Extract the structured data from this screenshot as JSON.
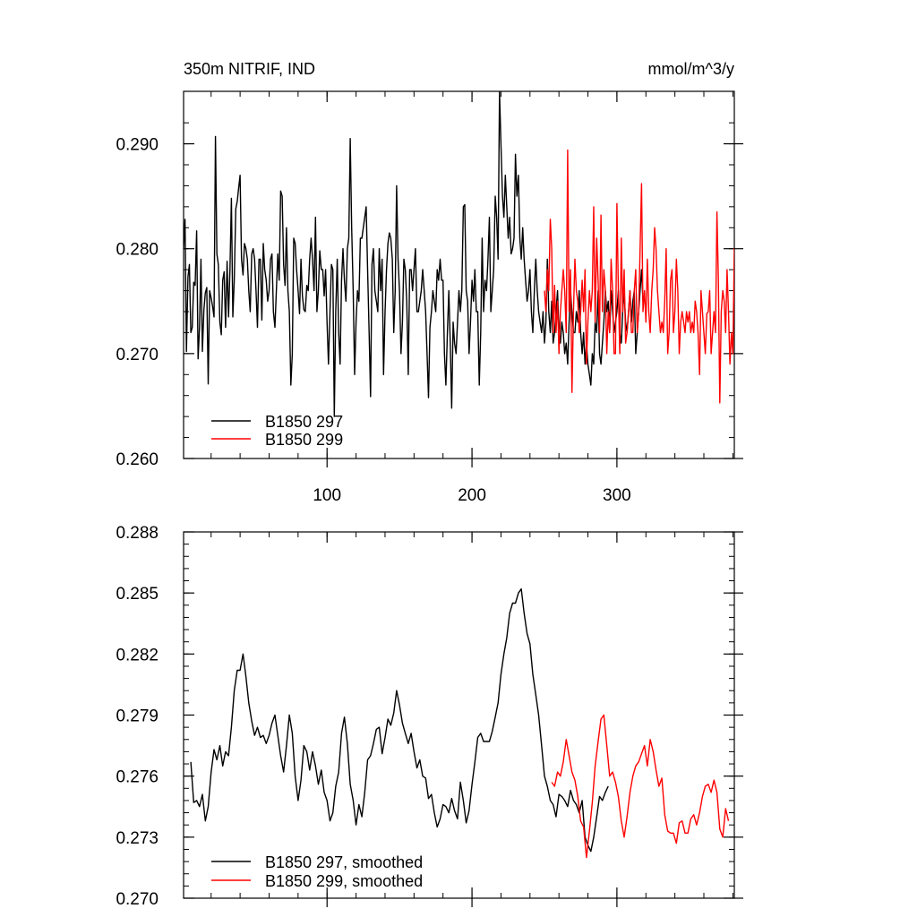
{
  "colors": {
    "black_series": "#000000",
    "red_series": "#ff0000",
    "axes": "#000000"
  },
  "chart_data": [
    {
      "type": "line",
      "title_left": "350m NITRIF, IND",
      "title_right": "mmol/m^3/y",
      "xlim": [
        1,
        381
      ],
      "ylim": [
        0.26,
        0.295
      ],
      "x_major_ticks": [
        100,
        200,
        300
      ],
      "x_tick_labels": [
        "100",
        "200",
        "300"
      ],
      "x_minor_step": 20,
      "y_major_ticks": [
        0.26,
        0.27,
        0.28,
        0.29
      ],
      "y_tick_labels": [
        "0.260",
        "0.270",
        "0.280",
        "0.290"
      ],
      "y_minor_step": 0.002,
      "legend_position": "bottom-left",
      "series": [
        {
          "name": "B1850 297",
          "color": "#000000",
          "x_start": 1,
          "x_step": 1,
          "values": [
            0.28,
            0.2828,
            0.2702,
            0.2773,
            0.2785,
            0.272,
            0.2725,
            0.2768,
            0.2765,
            0.2817,
            0.2695,
            0.2725,
            0.279,
            0.2702,
            0.2742,
            0.2758,
            0.2763,
            0.2671,
            0.276,
            0.2753,
            0.2745,
            0.2735,
            0.2907,
            0.2795,
            0.2785,
            0.273,
            0.2718,
            0.277,
            0.2778,
            0.2725,
            0.2788,
            0.2735,
            0.278,
            0.2848,
            0.2735,
            0.277,
            0.2838,
            0.2845,
            0.2858,
            0.287,
            0.279,
            0.2775,
            0.2805,
            0.28,
            0.279,
            0.276,
            0.274,
            0.2795,
            0.28,
            0.279,
            0.276,
            0.2725,
            0.279,
            0.279,
            0.2732,
            0.2805,
            0.278,
            0.277,
            0.275,
            0.276,
            0.279,
            0.2795,
            0.274,
            0.2725,
            0.276,
            0.2795,
            0.277,
            0.2855,
            0.285,
            0.2785,
            0.2765,
            0.282,
            0.276,
            0.274,
            0.267,
            0.27,
            0.281,
            0.2805,
            0.278,
            0.276,
            0.2738,
            0.279,
            0.2755,
            0.2742,
            0.274,
            0.2765,
            0.276,
            0.279,
            0.281,
            0.279,
            0.276,
            0.283,
            0.274,
            0.276,
            0.2798,
            0.278,
            0.278,
            0.2755,
            0.278,
            0.273,
            0.269,
            0.274,
            0.2785,
            0.278,
            0.264,
            0.274,
            0.279,
            0.272,
            0.269,
            0.277,
            0.28,
            0.277,
            0.275,
            0.28,
            0.281,
            0.2905,
            0.282,
            0.276,
            0.268,
            0.273,
            0.276,
            0.275,
            0.281,
            0.281,
            0.282,
            0.283,
            0.284,
            0.278,
            0.272,
            0.2659,
            0.2785,
            0.28,
            0.276,
            0.275,
            0.274,
            0.28,
            0.276,
            0.279,
            0.268,
            0.274,
            0.278,
            0.2805,
            0.2815,
            0.281,
            0.279,
            0.272,
            0.276,
            0.286,
            0.279,
            0.276,
            0.27,
            0.273,
            0.279,
            0.278,
            0.275,
            0.268,
            0.278,
            0.278,
            0.276,
            0.278,
            0.28,
            0.274,
            0.274,
            0.275,
            0.276,
            0.278,
            0.276,
            0.274,
            0.27,
            0.2658,
            0.2725,
            0.274,
            0.276,
            0.275,
            0.274,
            0.278,
            0.277,
            0.279,
            0.277,
            0.277,
            0.27,
            0.267,
            0.272,
            0.276,
            0.271,
            0.2648,
            0.273,
            0.271,
            0.27,
            0.273,
            0.276,
            0.274,
            0.276,
            0.284,
            0.2842,
            0.276,
            0.275,
            0.27,
            0.273,
            0.277,
            0.275,
            0.278,
            0.274,
            0.274,
            0.267,
            0.272,
            0.281,
            0.274,
            0.277,
            0.276,
            0.279,
            0.283,
            0.274,
            0.276,
            0.278,
            0.285,
            0.283,
            0.279,
            0.295,
            0.29,
            0.285,
            0.283,
            0.287,
            0.284,
            0.281,
            0.283,
            0.2795,
            0.28,
            0.281,
            0.289,
            0.285,
            0.287,
            0.281,
            0.279,
            0.282,
            0.279,
            0.277,
            0.275,
            0.276,
            0.278,
            0.274,
            0.272,
            0.276,
            0.279,
            0.276,
            0.274,
            0.273,
            0.272,
            0.274,
            0.271,
            0.273,
            0.279,
            0.274,
            0.272,
            0.275,
            0.271,
            0.272,
            0.274,
            0.276,
            0.272,
            0.271,
            0.273,
            0.272,
            0.27,
            0.271,
            0.269,
            0.273,
            0.276,
            0.274,
            0.272,
            0.272,
            0.274,
            0.273,
            0.276,
            0.272,
            0.27,
            0.272,
            0.269,
            0.271,
            0.269,
            0.268,
            0.267,
            0.27,
            0.269,
            0.273,
            0.272,
            0.276,
            0.27,
            0.269,
            0.271,
            0.273,
            0.276,
            0.274,
            0.275,
            0.272,
            0.276,
            0.274,
            0.272,
            0.273,
            0.274,
            0.276,
            0.272,
            0.271,
            0.274,
            0.276,
            0.273,
            0.272,
            0.274,
            0.276,
            0.273,
            0.275,
            0.276,
            0.27,
            0.272,
            0.274,
            0.276,
            0.278,
            0.275
          ]
        },
        {
          "name": "B1850 299",
          "color": "#ff0000",
          "x_start": 250,
          "x_step": 1,
          "values": [
            0.276,
            0.274,
            0.278,
            0.276,
            0.2828,
            0.28,
            0.272,
            0.2765,
            0.272,
            0.275,
            0.27,
            0.274,
            0.276,
            0.278,
            0.276,
            0.272,
            0.2894,
            0.274,
            0.278,
            0.2663,
            0.274,
            0.279,
            0.276,
            0.275,
            0.272,
            0.274,
            0.277,
            0.274,
            0.278,
            0.269,
            0.273,
            0.276,
            0.274,
            0.276,
            0.284,
            0.273,
            0.281,
            0.277,
            0.272,
            0.2832,
            0.274,
            0.278,
            0.276,
            0.27,
            0.274,
            0.272,
            0.279,
            0.276,
            0.27,
            0.27,
            0.2843,
            0.276,
            0.27,
            0.281,
            0.274,
            0.278,
            0.271,
            0.272,
            0.274,
            0.276,
            0.272,
            0.272,
            0.276,
            0.278,
            0.272,
            0.274,
            0.28,
            0.2862,
            0.274,
            0.276,
            0.273,
            0.279,
            0.274,
            0.272,
            0.276,
            0.278,
            0.282,
            0.28,
            0.276,
            0.274,
            0.272,
            0.273,
            0.272,
            0.275,
            0.28,
            0.27,
            0.272,
            0.277,
            0.278,
            0.272,
            0.274,
            0.279,
            0.276,
            0.27,
            0.273,
            0.274,
            0.273,
            0.272,
            0.274,
            0.273,
            0.274,
            0.272,
            0.273,
            0.272,
            0.275,
            0.274,
            0.272,
            0.268,
            0.276,
            0.274,
            0.272,
            0.27,
            0.2738,
            0.274,
            0.276,
            0.27,
            0.272,
            0.274,
            0.272,
            0.2835,
            0.277,
            0.2653,
            0.274,
            0.276,
            0.275,
            0.272,
            0.278,
            0.274,
            0.269,
            0.272,
            0.27,
            0.28,
            0.275,
            0.278,
            0.274,
            0.27,
            0.274,
            0.272,
            0.276,
            0.272,
            0.276,
            0.2828,
            0.276,
            0.272,
            0.276,
            0.272,
            0.278,
            0.274,
            0.272,
            0.276,
            0.274,
            0.268,
            0.28,
            0.272,
            0.276,
            0.274,
            0.279,
            0.278,
            0.27,
            0.272,
            0.274,
            0.277,
            0.278,
            0.272,
            0.276,
            0.274,
            0.278,
            0.277,
            0.279,
            0.278,
            0.272,
            0.274,
            0.272,
            0.274,
            0.272,
            0.2702,
            0.274,
            0.277,
            0.273,
            0.279,
            0.281,
            0.274,
            0.277,
            0.2759,
            0.28,
            0.27,
            0.272,
            0.274,
            0.274,
            0.27,
            0.272,
            0.275,
            0.272,
            0.27,
            0.272,
            0.274,
            0.272,
            0.274,
            0.276,
            0.274,
            0.276,
            0.28,
            0.272,
            0.27,
            0.2659,
            0.272,
            0.269,
            0.267,
            0.27,
            0.272,
            0.274,
            0.276,
            0.278,
            0.282,
            0.2857,
            0.278,
            0.273
          ]
        }
      ],
      "legend": [
        {
          "label": "B1850 297",
          "color": "#000000"
        },
        {
          "label": "B1850 299",
          "color": "#ff0000"
        }
      ]
    },
    {
      "type": "line",
      "xlim": [
        1,
        381
      ],
      "ylim": [
        0.27,
        0.288
      ],
      "x_major_ticks": [
        100,
        200,
        300
      ],
      "x_tick_labels": [
        "",
        "",
        ""
      ],
      "x_minor_step": 20,
      "y_major_ticks": [
        0.27,
        0.273,
        0.276,
        0.279,
        0.282,
        0.285,
        0.288
      ],
      "y_tick_labels": [
        "0.270",
        "0.273",
        "0.276",
        "0.279",
        "0.282",
        "0.285",
        "0.288"
      ],
      "y_minor_step": 0.0006,
      "legend_position": "bottom-left",
      "series": [
        {
          "name": "B1850 297, smoothed",
          "color": "#000000",
          "x_start": 6,
          "x_step": 2,
          "values": [
            0.2767,
            0.2747,
            0.2748,
            0.2745,
            0.2751,
            0.2738,
            0.2745,
            0.2762,
            0.2773,
            0.2768,
            0.2775,
            0.2765,
            0.2772,
            0.277,
            0.2784,
            0.2802,
            0.2812,
            0.2812,
            0.282,
            0.2809,
            0.2796,
            0.2787,
            0.278,
            0.2784,
            0.2779,
            0.278,
            0.2776,
            0.278,
            0.2786,
            0.279,
            0.278,
            0.277,
            0.2762,
            0.2775,
            0.279,
            0.2781,
            0.276,
            0.2748,
            0.2758,
            0.2775,
            0.2772,
            0.2763,
            0.2772,
            0.2765,
            0.2756,
            0.2763,
            0.2752,
            0.2748,
            0.2738,
            0.2742,
            0.2755,
            0.2762,
            0.2781,
            0.2789,
            0.2776,
            0.2756,
            0.2748,
            0.2736,
            0.2746,
            0.274,
            0.2752,
            0.2768,
            0.277,
            0.2776,
            0.2783,
            0.2784,
            0.2771,
            0.2779,
            0.2788,
            0.2785,
            0.2791,
            0.2802,
            0.2795,
            0.2786,
            0.2781,
            0.2776,
            0.2781,
            0.2772,
            0.2764,
            0.2768,
            0.276,
            0.2759,
            0.2749,
            0.2751,
            0.2742,
            0.2735,
            0.2739,
            0.2746,
            0.2745,
            0.2742,
            0.2749,
            0.2743,
            0.2739,
            0.2757,
            0.2748,
            0.2737,
            0.2743,
            0.2756,
            0.2767,
            0.2779,
            0.2781,
            0.2777,
            0.2777,
            0.2777,
            0.2782,
            0.2789,
            0.2796,
            0.281,
            0.282,
            0.2828,
            0.284,
            0.2845,
            0.2845,
            0.285,
            0.2852,
            0.284,
            0.283,
            0.2825,
            0.281,
            0.28,
            0.279,
            0.2775,
            0.276,
            0.2755,
            0.2748,
            0.2746,
            0.274,
            0.2751,
            0.275,
            0.2748,
            0.2745,
            0.2753,
            0.2748,
            0.2746,
            0.2742,
            0.2748,
            0.273,
            0.2726,
            0.2723,
            0.273,
            0.274,
            0.275,
            0.2748,
            0.2752,
            0.2755
          ]
        },
        {
          "name": "B1850 299, smoothed",
          "color": "#ff0000",
          "x_start": 255,
          "x_step": 2,
          "values": [
            0.2757,
            0.2755,
            0.2762,
            0.276,
            0.2767,
            0.2778,
            0.277,
            0.2762,
            0.2758,
            0.275,
            0.2738,
            0.2735,
            0.272,
            0.2733,
            0.2747,
            0.2765,
            0.2777,
            0.2788,
            0.279,
            0.2775,
            0.276,
            0.2762,
            0.2757,
            0.275,
            0.2738,
            0.273,
            0.274,
            0.2752,
            0.276,
            0.2765,
            0.2767,
            0.2771,
            0.2775,
            0.2765,
            0.2778,
            0.2772,
            0.2763,
            0.2755,
            0.2759,
            0.2741,
            0.2733,
            0.2732,
            0.2732,
            0.2727,
            0.2737,
            0.2738,
            0.2732,
            0.2732,
            0.2739,
            0.2741,
            0.2736,
            0.2742,
            0.275,
            0.2755,
            0.2756,
            0.2752,
            0.2758,
            0.2752,
            0.2734,
            0.273,
            0.2744,
            0.2738
          ]
        }
      ],
      "legend": [
        {
          "label": "B1850 297, smoothed",
          "color": "#000000"
        },
        {
          "label": "B1850 299, smoothed",
          "color": "#ff0000"
        }
      ]
    }
  ]
}
